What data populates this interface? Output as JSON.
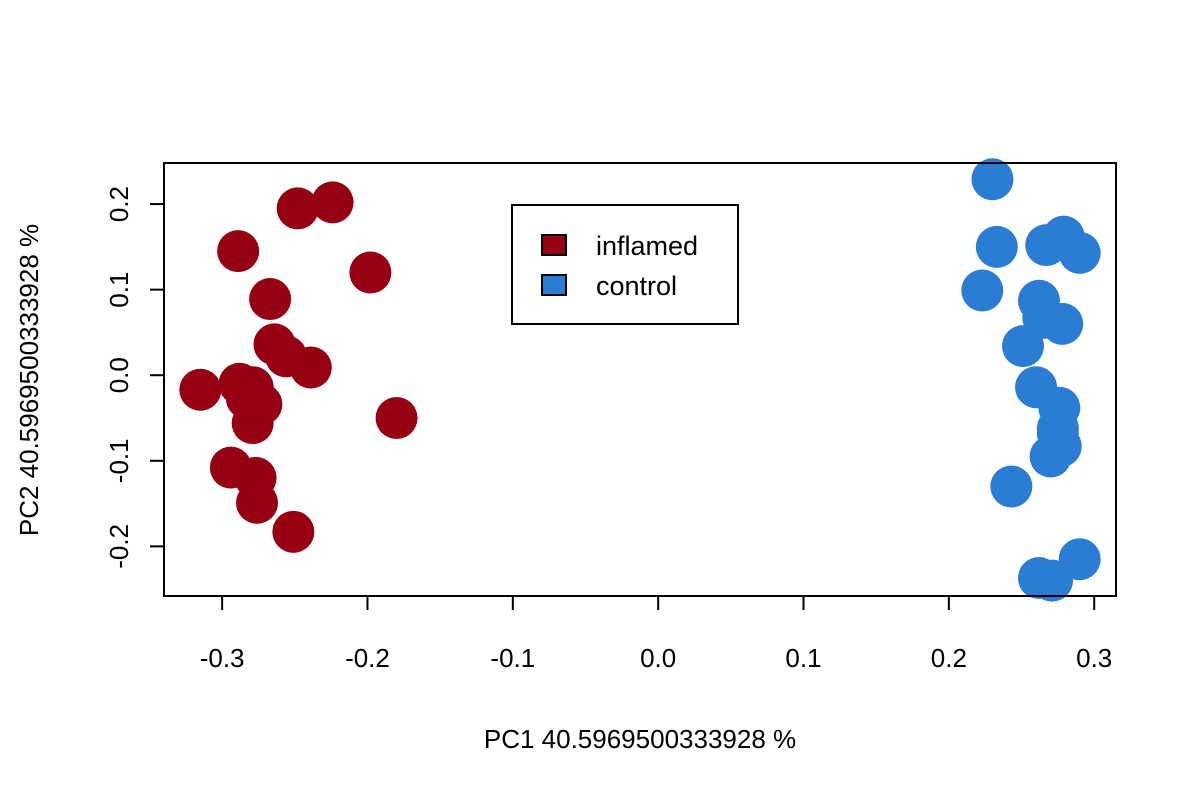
{
  "chart_data": {
    "type": "scatter",
    "title": "",
    "xlabel": "PC1 40.5969500333928 %",
    "ylabel": "PC2 40.5969500333928 %",
    "xlim": [
      -0.34,
      0.315
    ],
    "ylim": [
      -0.258,
      0.248
    ],
    "xticks": [
      -0.3,
      -0.2,
      -0.1,
      0.0,
      0.1,
      0.2,
      0.3
    ],
    "xtick_labels": [
      "-0.3",
      "-0.2",
      "-0.1",
      "0.0",
      "0.1",
      "0.2",
      "0.3"
    ],
    "yticks": [
      -0.2,
      -0.1,
      0.0,
      0.1,
      0.2
    ],
    "ytick_labels": [
      "-0.2",
      "-0.1",
      "0.0",
      "0.1",
      "0.2"
    ],
    "grid": false,
    "legend": {
      "position": "top-center"
    },
    "series": [
      {
        "name": "inflamed",
        "color": "#960012",
        "points": [
          {
            "x": -0.224,
            "y": 0.202
          },
          {
            "x": -0.248,
            "y": 0.195
          },
          {
            "x": -0.289,
            "y": 0.145
          },
          {
            "x": -0.198,
            "y": 0.12
          },
          {
            "x": -0.267,
            "y": 0.089
          },
          {
            "x": -0.264,
            "y": 0.036
          },
          {
            "x": -0.256,
            "y": 0.022
          },
          {
            "x": -0.239,
            "y": 0.009
          },
          {
            "x": -0.315,
            "y": -0.017
          },
          {
            "x": -0.288,
            "y": -0.01
          },
          {
            "x": -0.279,
            "y": -0.014
          },
          {
            "x": -0.283,
            "y": -0.027
          },
          {
            "x": -0.273,
            "y": -0.034
          },
          {
            "x": -0.279,
            "y": -0.056
          },
          {
            "x": -0.18,
            "y": -0.05
          },
          {
            "x": -0.294,
            "y": -0.108
          },
          {
            "x": -0.277,
            "y": -0.12
          },
          {
            "x": -0.276,
            "y": -0.149
          },
          {
            "x": -0.251,
            "y": -0.183
          }
        ]
      },
      {
        "name": "control",
        "color": "#2b7cd4",
        "points": [
          {
            "x": 0.23,
            "y": 0.229
          },
          {
            "x": 0.233,
            "y": 0.15
          },
          {
            "x": 0.279,
            "y": 0.162
          },
          {
            "x": 0.267,
            "y": 0.152
          },
          {
            "x": 0.29,
            "y": 0.143
          },
          {
            "x": 0.223,
            "y": 0.099
          },
          {
            "x": 0.262,
            "y": 0.087
          },
          {
            "x": 0.265,
            "y": 0.067
          },
          {
            "x": 0.278,
            "y": 0.06
          },
          {
            "x": 0.251,
            "y": 0.034
          },
          {
            "x": 0.26,
            "y": -0.014
          },
          {
            "x": 0.276,
            "y": -0.038
          },
          {
            "x": 0.275,
            "y": -0.062
          },
          {
            "x": 0.275,
            "y": -0.068
          },
          {
            "x": 0.277,
            "y": -0.083
          },
          {
            "x": 0.27,
            "y": -0.095
          },
          {
            "x": 0.243,
            "y": -0.13
          },
          {
            "x": 0.29,
            "y": -0.215
          },
          {
            "x": 0.262,
            "y": -0.237
          },
          {
            "x": 0.271,
            "y": -0.24
          }
        ]
      }
    ]
  }
}
